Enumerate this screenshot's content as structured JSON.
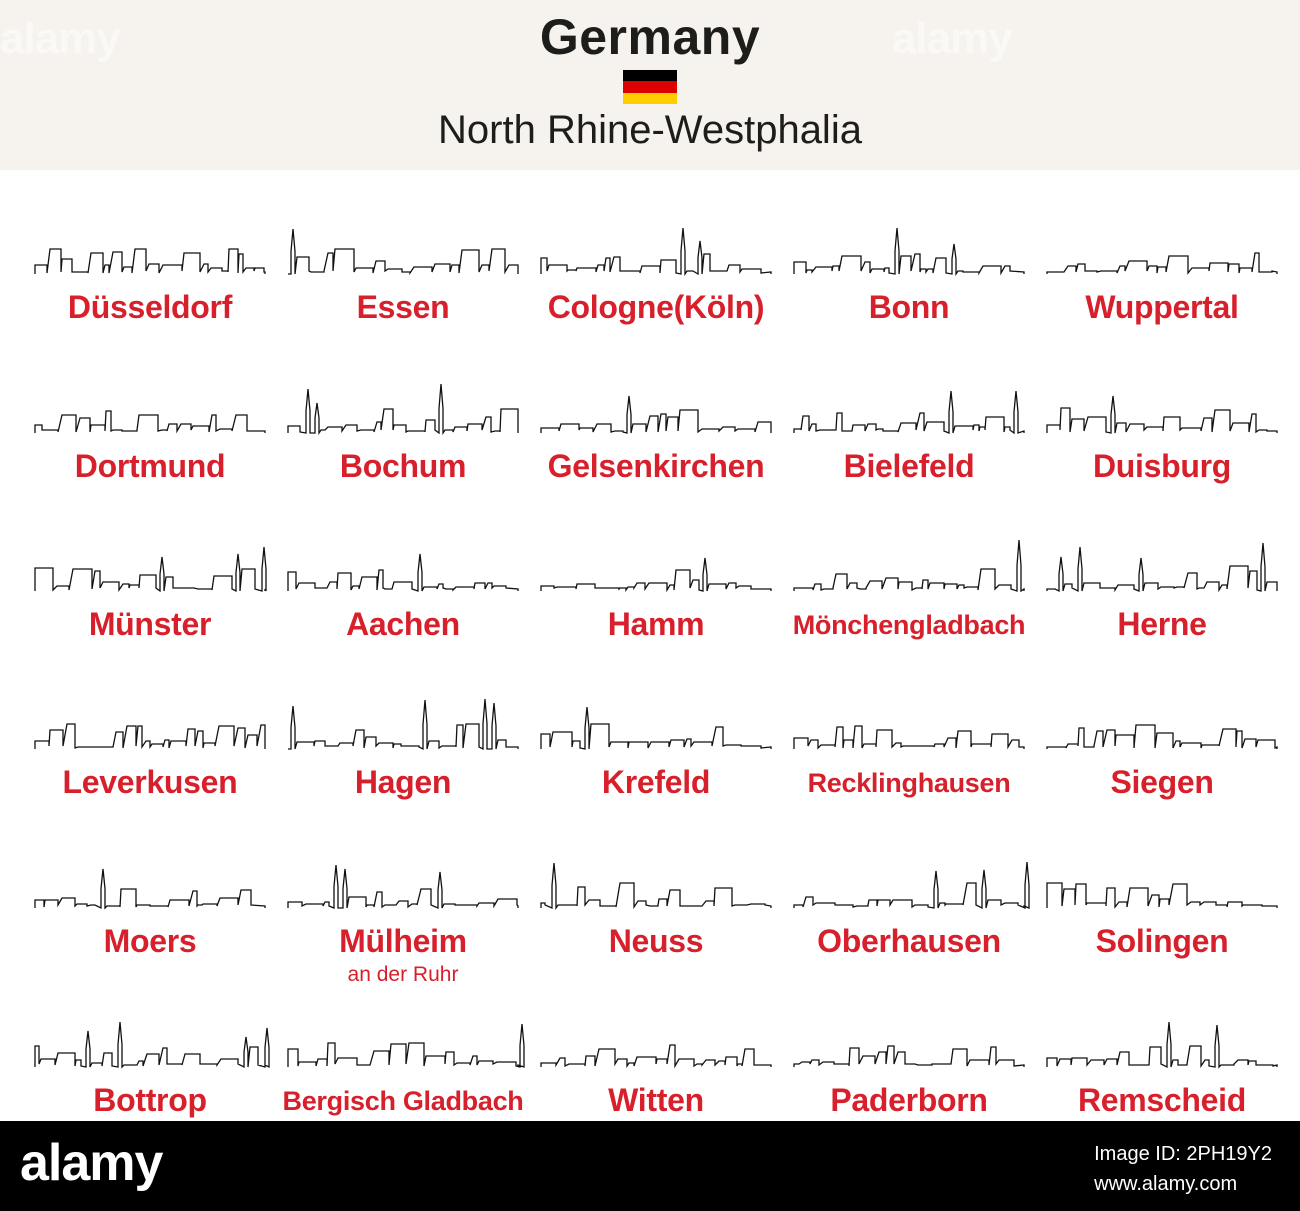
{
  "header": {
    "title": "Germany",
    "subtitle": "North Rhine-Westphalia",
    "watermark": "alamy",
    "flag_colors": [
      "#000000",
      "#dd0000",
      "#ffce00"
    ],
    "background": "#f6f2ed"
  },
  "label_color": "#d7202b",
  "cities": [
    {
      "name": "Düsseldorf",
      "sub": ""
    },
    {
      "name": "Essen",
      "sub": ""
    },
    {
      "name": "Cologne(Köln)",
      "sub": ""
    },
    {
      "name": "Bonn",
      "sub": ""
    },
    {
      "name": "Wuppertal",
      "sub": ""
    },
    {
      "name": "Dortmund",
      "sub": ""
    },
    {
      "name": "Bochum",
      "sub": ""
    },
    {
      "name": "Gelsenkirchen",
      "sub": ""
    },
    {
      "name": "Bielefeld",
      "sub": ""
    },
    {
      "name": "Duisburg",
      "sub": ""
    },
    {
      "name": "Münster",
      "sub": ""
    },
    {
      "name": "Aachen",
      "sub": ""
    },
    {
      "name": "Hamm",
      "sub": ""
    },
    {
      "name": "Mönchengladbach",
      "sub": ""
    },
    {
      "name": "Herne",
      "sub": ""
    },
    {
      "name": "Leverkusen",
      "sub": ""
    },
    {
      "name": "Hagen",
      "sub": ""
    },
    {
      "name": "Krefeld",
      "sub": ""
    },
    {
      "name": "Recklinghausen",
      "sub": ""
    },
    {
      "name": "Siegen",
      "sub": ""
    },
    {
      "name": "Moers",
      "sub": ""
    },
    {
      "name": "Mülheim",
      "sub": "an der Ruhr"
    },
    {
      "name": "Neuss",
      "sub": ""
    },
    {
      "name": "Oberhausen",
      "sub": ""
    },
    {
      "name": "Solingen",
      "sub": ""
    },
    {
      "name": "Bottrop",
      "sub": ""
    },
    {
      "name": "Bergisch Gladbach",
      "sub": ""
    },
    {
      "name": "Witten",
      "sub": ""
    },
    {
      "name": "Paderborn",
      "sub": ""
    },
    {
      "name": "Remscheid",
      "sub": ""
    }
  ],
  "footer": {
    "brand": "alamy",
    "image_id_label": "Image ID: 2PH19Y2",
    "site": "www.alamy.com"
  }
}
